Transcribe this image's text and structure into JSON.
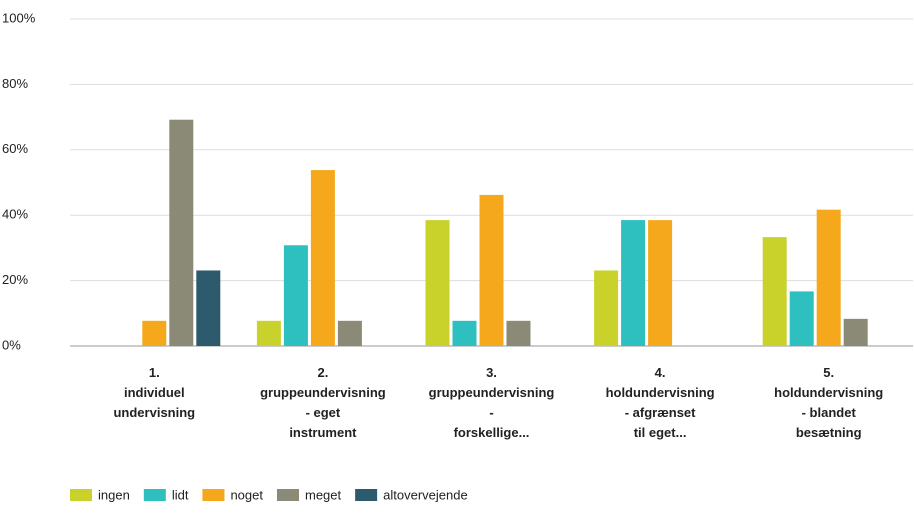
{
  "chart_data": {
    "type": "bar",
    "categories": [
      [
        "1.",
        "individuel",
        "undervisning"
      ],
      [
        "2.",
        "gruppeundervisning",
        "- eget",
        "instrument"
      ],
      [
        "3.",
        "gruppeundervisning",
        "-",
        "forskellige..."
      ],
      [
        "4.",
        "holdundervisning",
        "- afgrænset",
        "til eget..."
      ],
      [
        "5.",
        "holdundervisning",
        "- blandet",
        "besætning"
      ]
    ],
    "series": [
      {
        "name": "ingen",
        "color": "#c9d12b",
        "values": [
          0,
          7.7,
          38.5,
          23.1,
          33.3
        ]
      },
      {
        "name": "lidt",
        "color": "#2ebfbf",
        "values": [
          0,
          30.8,
          7.7,
          38.5,
          16.7
        ]
      },
      {
        "name": "noget",
        "color": "#f5a81c",
        "values": [
          7.7,
          53.8,
          46.2,
          38.5,
          41.7
        ]
      },
      {
        "name": "meget",
        "color": "#8a8a77",
        "values": [
          69.2,
          7.7,
          7.7,
          0,
          8.3
        ]
      },
      {
        "name": "altovervejende",
        "color": "#2e5a6d",
        "values": [
          23.1,
          0,
          0,
          0,
          0
        ]
      }
    ],
    "ylim": [
      0,
      100
    ],
    "yticks": [
      {
        "value": 0,
        "label": "0%"
      },
      {
        "value": 20,
        "label": "20%"
      },
      {
        "value": 40,
        "label": "40%"
      },
      {
        "value": 60,
        "label": "60%"
      },
      {
        "value": 80,
        "label": "80%"
      },
      {
        "value": 100,
        "label": "100%"
      }
    ],
    "grid": true,
    "legend": "bottom-left"
  }
}
